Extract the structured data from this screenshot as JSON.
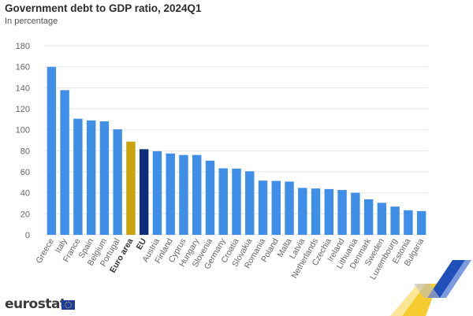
{
  "header": {
    "title": "Government debt to GDP ratio, 2024Q1",
    "subtitle": "In percentage"
  },
  "branding": {
    "logo_text": "eurostat",
    "flag_icon": "eu-flag-icon"
  },
  "colors": {
    "default_bar": "#3f8ee8",
    "euro_area_bar": "#c9a20c",
    "eu_bar": "#0b2f7a",
    "grid": "#e6e6e6",
    "tick_text": "#666666",
    "deco_yellow": "#f5c518",
    "deco_blue": "#1f4fb8"
  },
  "chart_data": {
    "type": "bar",
    "title": "Government debt to GDP ratio, 2024Q1",
    "subtitle": "In percentage",
    "xlabel": "",
    "ylabel": "",
    "ylim": [
      0,
      180
    ],
    "yticks": [
      0,
      20,
      40,
      60,
      80,
      100,
      120,
      140,
      160,
      180
    ],
    "grid": true,
    "legend": "none",
    "categories": [
      "Greece",
      "Italy",
      "France",
      "Spain",
      "Belgium",
      "Portugal",
      "Euro area",
      "EU",
      "Austria",
      "Finland",
      "Cyprus",
      "Hungary",
      "Slovenia",
      "Germany",
      "Croatia",
      "Slovakia",
      "Romania",
      "Poland",
      "Malta",
      "Latvia",
      "Netherlands",
      "Czechia",
      "Ireland",
      "Lithuania",
      "Denmark",
      "Sweden",
      "Luxembourg",
      "Estonia",
      "Bulgaria"
    ],
    "values": [
      159.8,
      137.7,
      110.5,
      108.9,
      108.0,
      100.4,
      88.7,
      81.5,
      79.6,
      77.4,
      76.0,
      76.0,
      70.6,
      63.3,
      63.0,
      60.5,
      51.6,
      51.3,
      50.7,
      44.7,
      44.1,
      43.6,
      42.7,
      40.0,
      33.8,
      30.5,
      26.9,
      23.4,
      22.6
    ],
    "highlight": {
      "Euro area": "euro_area_bar",
      "EU": "eu_bar"
    },
    "bold_labels": [
      "Euro area",
      "EU"
    ]
  }
}
